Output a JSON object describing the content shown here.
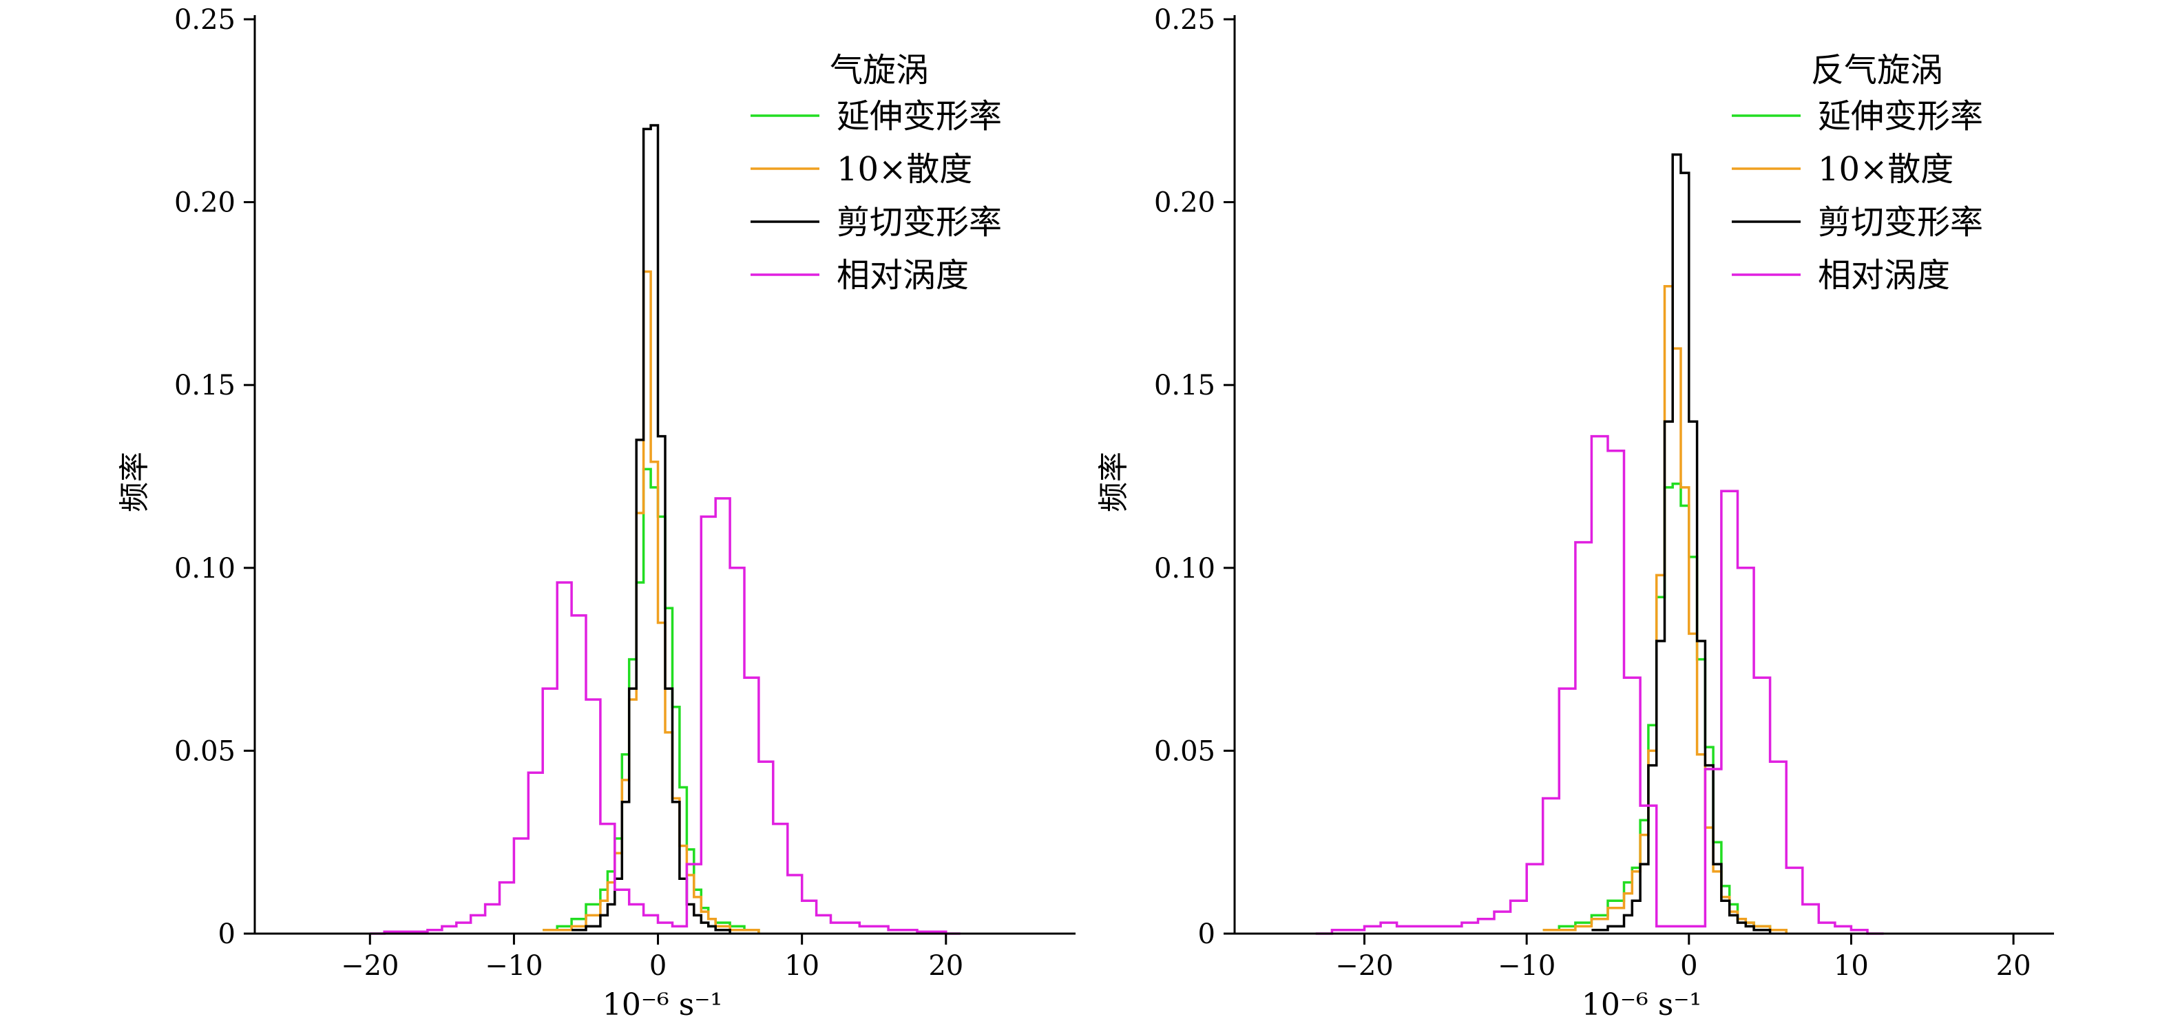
{
  "chart_data": [
    {
      "type": "step-histogram",
      "legend_title": "气旋涡",
      "xlabel": "10⁻⁶ s⁻¹",
      "ylabel": "频率",
      "xlim": [
        -28,
        29
      ],
      "ylim": [
        0,
        0.25
      ],
      "xticks": [
        -20,
        -10,
        0,
        10,
        20
      ],
      "xtick_labels": [
        "−20",
        "−10",
        "0",
        "10",
        "20"
      ],
      "yticks": [
        0,
        0.05,
        0.1,
        0.15,
        0.2,
        0.25
      ],
      "ytick_labels": [
        "0",
        "0.05",
        "0.10",
        "0.15",
        "0.20",
        "0.25"
      ],
      "legend_position": "top-right",
      "grid": false,
      "series": [
        {
          "name": "延伸变形率",
          "color": "#22dd22",
          "x": [
            -8,
            -7,
            -6,
            -5,
            -4,
            -3.5,
            -3,
            -2.5,
            -2,
            -1.5,
            -1,
            -0.5,
            0,
            0.5,
            1,
            1.5,
            2,
            2.5,
            3,
            3.5,
            4,
            5,
            6,
            7
          ],
          "y": [
            0.001,
            0.002,
            0.004,
            0.008,
            0.012,
            0.017,
            0.026,
            0.049,
            0.075,
            0.096,
            0.127,
            0.122,
            0.114,
            0.089,
            0.062,
            0.04,
            0.023,
            0.012,
            0.007,
            0.004,
            0.003,
            0.002,
            0.001,
            0.0
          ]
        },
        {
          "name": "10×散度",
          "color": "#f0a020",
          "x": [
            -8,
            -7,
            -6,
            -5,
            -4,
            -3.5,
            -3,
            -2.5,
            -2,
            -1.5,
            -1,
            -0.5,
            0,
            0.5,
            1,
            1.5,
            2,
            2.5,
            3,
            3.5,
            4,
            5,
            6,
            7
          ],
          "y": [
            0.001,
            0.001,
            0.002,
            0.005,
            0.009,
            0.014,
            0.022,
            0.042,
            0.064,
            0.115,
            0.181,
            0.129,
            0.085,
            0.055,
            0.037,
            0.024,
            0.016,
            0.01,
            0.006,
            0.004,
            0.002,
            0.001,
            0.001,
            0.0
          ]
        },
        {
          "name": "剪切变形率",
          "color": "#000000",
          "x": [
            -6,
            -5,
            -4,
            -3.5,
            -3,
            -2.5,
            -2,
            -1.5,
            -1,
            -0.5,
            0,
            0.5,
            1,
            1.5,
            2,
            2.5,
            3,
            3.5,
            4,
            5
          ],
          "y": [
            0.001,
            0.002,
            0.005,
            0.008,
            0.015,
            0.036,
            0.067,
            0.135,
            0.22,
            0.221,
            0.136,
            0.067,
            0.036,
            0.015,
            0.008,
            0.005,
            0.003,
            0.002,
            0.001,
            0.0
          ]
        },
        {
          "name": "相对涡度",
          "color": "#e020e0",
          "x": [
            -20,
            -19,
            -16,
            -15,
            -14,
            -13,
            -12,
            -11,
            -10,
            -9,
            -8,
            -7,
            -6,
            -5,
            -4,
            -3,
            -2,
            -1,
            0,
            1,
            2,
            3,
            4,
            5,
            6,
            7,
            8,
            9,
            10,
            11,
            12,
            14,
            16,
            18,
            20,
            21
          ],
          "y": [
            0.0,
            0.0005,
            0.001,
            0.002,
            0.003,
            0.005,
            0.008,
            0.014,
            0.026,
            0.044,
            0.067,
            0.096,
            0.087,
            0.064,
            0.03,
            0.012,
            0.008,
            0.005,
            0.003,
            0.002,
            0.019,
            0.114,
            0.119,
            0.1,
            0.07,
            0.047,
            0.03,
            0.016,
            0.009,
            0.005,
            0.003,
            0.002,
            0.001,
            0.0005,
            0.0,
            0.0
          ]
        }
      ]
    },
    {
      "type": "step-histogram",
      "legend_title": "反气旋涡",
      "xlabel": "10⁻⁶ s⁻¹",
      "ylabel": "频率",
      "xlim": [
        -28,
        22.5
      ],
      "ylim": [
        0,
        0.25
      ],
      "xticks": [
        -20,
        -10,
        0,
        10,
        20
      ],
      "xtick_labels": [
        "−20",
        "−10",
        "0",
        "10",
        "20"
      ],
      "yticks": [
        0,
        0.05,
        0.1,
        0.15,
        0.2,
        0.25
      ],
      "ytick_labels": [
        "0",
        "0.05",
        "0.10",
        "0.15",
        "0.20",
        "0.25"
      ],
      "legend_position": "top-right",
      "grid": false,
      "series": [
        {
          "name": "延伸变形率",
          "color": "#22dd22",
          "x": [
            -9,
            -8,
            -7,
            -6,
            -5,
            -4,
            -3.5,
            -3,
            -2.5,
            -2,
            -1.5,
            -1,
            -0.5,
            0,
            0.5,
            1,
            1.5,
            2,
            2.5,
            3,
            3.5,
            4,
            5,
            6
          ],
          "y": [
            0.001,
            0.002,
            0.003,
            0.005,
            0.009,
            0.014,
            0.018,
            0.031,
            0.057,
            0.092,
            0.122,
            0.123,
            0.117,
            0.103,
            0.075,
            0.051,
            0.025,
            0.013,
            0.008,
            0.004,
            0.003,
            0.002,
            0.001,
            0.0
          ]
        },
        {
          "name": "10×散度",
          "color": "#f0a020",
          "x": [
            -9,
            -8,
            -7,
            -6,
            -5,
            -4,
            -3.5,
            -3,
            -2.5,
            -2,
            -1.5,
            -1,
            -0.5,
            0,
            0.5,
            1,
            1.5,
            2,
            2.5,
            3,
            3.5,
            4,
            5,
            6
          ],
          "y": [
            0.001,
            0.001,
            0.002,
            0.004,
            0.007,
            0.011,
            0.017,
            0.027,
            0.05,
            0.098,
            0.177,
            0.16,
            0.122,
            0.082,
            0.049,
            0.029,
            0.017,
            0.01,
            0.006,
            0.004,
            0.003,
            0.002,
            0.001,
            0.0
          ]
        },
        {
          "name": "剪切变形率",
          "color": "#000000",
          "x": [
            -6,
            -5,
            -4,
            -3.5,
            -3,
            -2.5,
            -2,
            -1.5,
            -1,
            -0.5,
            0,
            0.5,
            1,
            1.5,
            2,
            2.5,
            3,
            3.5,
            4,
            5
          ],
          "y": [
            0.001,
            0.002,
            0.005,
            0.009,
            0.019,
            0.046,
            0.08,
            0.14,
            0.213,
            0.208,
            0.14,
            0.08,
            0.046,
            0.019,
            0.009,
            0.005,
            0.003,
            0.002,
            0.001,
            0.0
          ]
        },
        {
          "name": "相对涡度",
          "color": "#e020e0",
          "x": [
            -23,
            -22,
            -20,
            -19,
            -18,
            -17,
            -16,
            -15,
            -14,
            -13,
            -12,
            -11,
            -10,
            -9,
            -8,
            -7,
            -6,
            -5,
            -4,
            -3,
            -2,
            -1,
            0,
            1,
            2,
            3,
            4,
            5,
            6,
            7,
            8,
            9,
            10,
            11,
            12
          ],
          "y": [
            0.0,
            0.001,
            0.002,
            0.003,
            0.002,
            0.002,
            0.002,
            0.002,
            0.003,
            0.004,
            0.006,
            0.009,
            0.019,
            0.037,
            0.067,
            0.107,
            0.136,
            0.132,
            0.07,
            0.035,
            0.002,
            0.002,
            0.002,
            0.045,
            0.121,
            0.1,
            0.07,
            0.047,
            0.018,
            0.008,
            0.003,
            0.002,
            0.001,
            0.0,
            0.0
          ]
        }
      ]
    }
  ]
}
